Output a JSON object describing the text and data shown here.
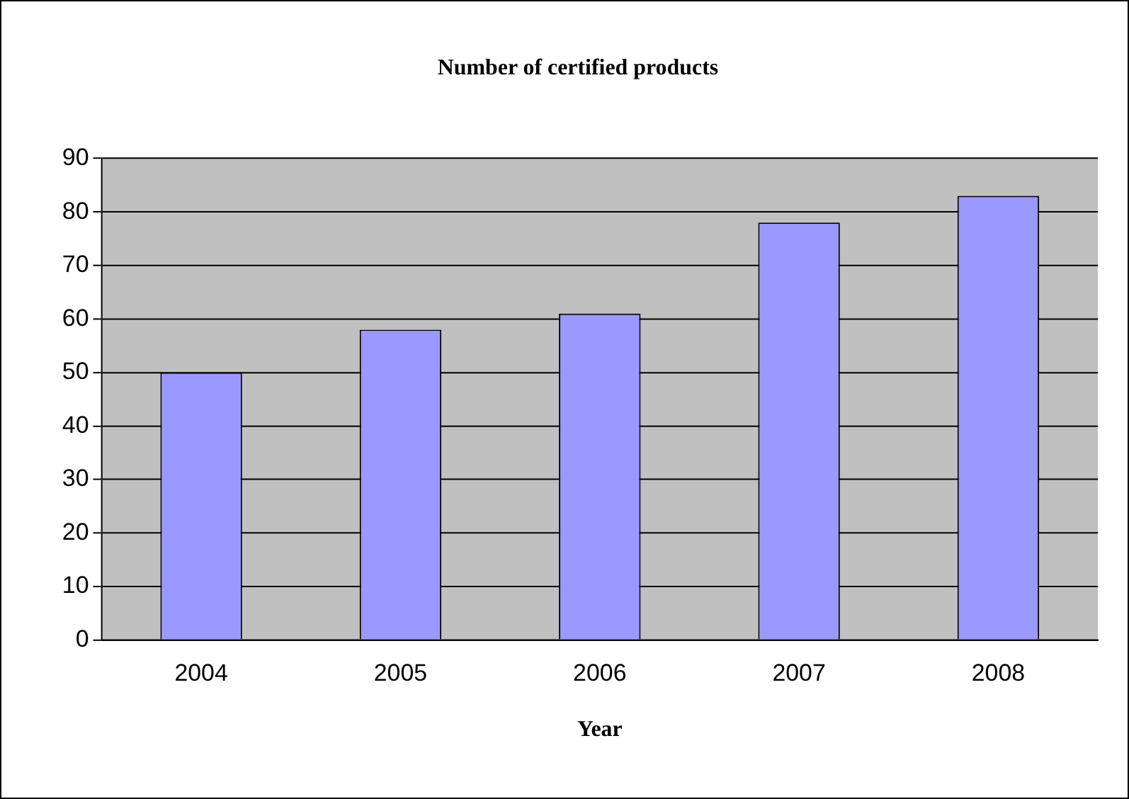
{
  "chart_data": {
    "type": "bar",
    "title": "Number of certified products",
    "xlabel": "Year",
    "categories": [
      "2004",
      "2005",
      "2006",
      "2007",
      "2008"
    ],
    "values": [
      50,
      58,
      61,
      78,
      83
    ],
    "color": "#9999ff",
    "ylim": [
      0,
      90
    ],
    "yticks": [
      0,
      10,
      20,
      30,
      40,
      50,
      60,
      70,
      80,
      90
    ],
    "grid": "y",
    "legend": false
  }
}
